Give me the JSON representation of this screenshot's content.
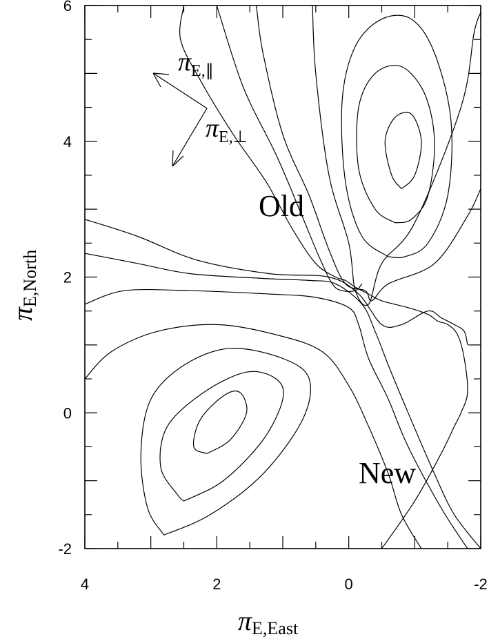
{
  "chart_data": {
    "type": "contour",
    "x_axis": {
      "label_symbol": "π",
      "label_subscript": "E,East",
      "range": [
        4,
        -2
      ],
      "reversed": true,
      "ticks": [
        4,
        2,
        0,
        -2
      ],
      "tick_labels": [
        "4",
        "2",
        "0",
        "-2"
      ]
    },
    "y_axis": {
      "label_symbol": "π",
      "label_subscript": "E,North",
      "range": [
        -2,
        6
      ],
      "ticks": [
        -2,
        0,
        2,
        4,
        6
      ],
      "tick_labels": [
        "-2",
        "0",
        "2",
        "4",
        "6"
      ]
    },
    "annotations": {
      "old": "Old",
      "new": "New",
      "arrow_parallel": {
        "symbol": "π",
        "subscript": "E,∥"
      },
      "arrow_perp": {
        "symbol": "π",
        "subscript": "E,⊥"
      }
    },
    "grid": false,
    "contours": [
      {
        "name": "old-inner",
        "points": [
          [
            -0.8,
            3.3
          ],
          [
            -0.65,
            3.5
          ],
          [
            -0.55,
            4.0
          ],
          [
            -0.7,
            4.35
          ],
          [
            -0.95,
            4.4
          ],
          [
            -1.1,
            4.0
          ],
          [
            -1.0,
            3.5
          ],
          [
            -0.8,
            3.3
          ]
        ]
      },
      {
        "name": "old-2",
        "points": [
          [
            -0.7,
            2.8
          ],
          [
            -0.4,
            3.0
          ],
          [
            -0.15,
            3.6
          ],
          [
            -0.15,
            4.5
          ],
          [
            -0.4,
            5.0
          ],
          [
            -0.8,
            5.1
          ],
          [
            -1.15,
            4.7
          ],
          [
            -1.3,
            4.0
          ],
          [
            -1.2,
            3.2
          ],
          [
            -0.95,
            2.85
          ],
          [
            -0.7,
            2.8
          ]
        ]
      },
      {
        "name": "old-3",
        "points": [
          [
            -0.6,
            2.3
          ],
          [
            -0.2,
            2.6
          ],
          [
            0.05,
            3.4
          ],
          [
            0.1,
            4.6
          ],
          [
            -0.1,
            5.4
          ],
          [
            -0.5,
            5.8
          ],
          [
            -0.95,
            5.8
          ],
          [
            -1.3,
            5.3
          ],
          [
            -1.55,
            4.3
          ],
          [
            -1.5,
            3.2
          ],
          [
            -1.2,
            2.5
          ],
          [
            -0.85,
            2.3
          ],
          [
            -0.6,
            2.3
          ]
        ]
      },
      {
        "name": "old-4",
        "points": [
          [
            0.55,
            6.0
          ],
          [
            0.5,
            5.0
          ],
          [
            0.3,
            3.5
          ],
          [
            0.0,
            2.5
          ],
          [
            -0.1,
            1.8
          ],
          [
            -0.3,
            1.6
          ],
          [
            -0.5,
            2.2
          ],
          [
            -1.0,
            2.8
          ],
          [
            -1.7,
            4.5
          ],
          [
            -1.9,
            5.6
          ],
          [
            -2.0,
            5.9
          ]
        ]
      },
      {
        "name": "old-5",
        "points": [
          [
            1.4,
            6.0
          ],
          [
            1.3,
            5.3
          ],
          [
            1.0,
            4.1
          ],
          [
            0.6,
            3.2
          ],
          [
            0.3,
            2.4
          ],
          [
            0.05,
            1.9
          ],
          [
            -0.25,
            1.8
          ],
          [
            -0.35,
            1.65
          ],
          [
            -0.6,
            1.9
          ],
          [
            -1.3,
            2.2
          ],
          [
            -1.8,
            2.9
          ],
          [
            -2.0,
            3.3
          ]
        ]
      },
      {
        "name": "mid-1",
        "points": [
          [
            2.0,
            6.0
          ],
          [
            1.6,
            4.8
          ],
          [
            1.1,
            3.8
          ],
          [
            0.75,
            3.0
          ],
          [
            0.45,
            2.3
          ],
          [
            0.25,
            1.9
          ],
          [
            0.1,
            1.8
          ],
          [
            -0.1,
            1.8
          ],
          [
            -0.2,
            1.9
          ]
        ]
      },
      {
        "name": "mid-2",
        "points": [
          [
            2.5,
            6.0
          ],
          [
            2.55,
            5.5
          ],
          [
            2.25,
            4.9
          ],
          [
            1.75,
            4.1
          ],
          [
            1.25,
            3.4
          ],
          [
            0.85,
            2.7
          ],
          [
            0.5,
            2.2
          ],
          [
            0.2,
            2.0
          ],
          [
            0.05,
            1.95
          ],
          [
            -0.1,
            1.85
          ],
          [
            -0.3,
            1.75
          ],
          [
            -0.5,
            1.65
          ],
          [
            -0.9,
            1.55
          ],
          [
            -1.2,
            1.45
          ],
          [
            -1.35,
            1.35
          ],
          [
            -1.5,
            1.3
          ],
          [
            -1.65,
            1.15
          ],
          [
            -1.75,
            0.8
          ],
          [
            -1.8,
            0.3
          ],
          [
            -1.7,
            0.0
          ],
          [
            -1.6,
            -0.2
          ],
          [
            -1.4,
            -0.6
          ],
          [
            -1.0,
            -1.3
          ],
          [
            -0.5,
            -2.0
          ]
        ]
      },
      {
        "name": "new-inner",
        "points": [
          [
            2.15,
            -0.6
          ],
          [
            1.8,
            -0.4
          ],
          [
            1.55,
            0.0
          ],
          [
            1.65,
            0.3
          ],
          [
            1.9,
            0.25
          ],
          [
            2.25,
            -0.1
          ],
          [
            2.35,
            -0.5
          ],
          [
            2.15,
            -0.6
          ]
        ]
      },
      {
        "name": "new-2",
        "points": [
          [
            2.5,
            -1.3
          ],
          [
            1.9,
            -1.0
          ],
          [
            1.3,
            -0.4
          ],
          [
            1.0,
            0.2
          ],
          [
            1.1,
            0.5
          ],
          [
            1.55,
            0.6
          ],
          [
            2.2,
            0.3
          ],
          [
            2.75,
            -0.2
          ],
          [
            2.85,
            -0.8
          ],
          [
            2.6,
            -1.2
          ],
          [
            2.5,
            -1.3
          ]
        ]
      },
      {
        "name": "new-3",
        "points": [
          [
            2.8,
            -1.8
          ],
          [
            2.1,
            -1.5
          ],
          [
            1.3,
            -0.9
          ],
          [
            0.7,
            -0.1
          ],
          [
            0.6,
            0.5
          ],
          [
            1.0,
            0.8
          ],
          [
            1.8,
            0.95
          ],
          [
            2.5,
            0.7
          ],
          [
            3.0,
            0.2
          ],
          [
            3.15,
            -0.6
          ],
          [
            3.05,
            -1.4
          ],
          [
            2.8,
            -1.8
          ]
        ]
      },
      {
        "name": "new-4",
        "points": [
          [
            4.0,
            0.5
          ],
          [
            3.6,
            0.9
          ],
          [
            2.9,
            1.2
          ],
          [
            2.0,
            1.3
          ],
          [
            1.1,
            1.15
          ],
          [
            0.4,
            0.9
          ],
          [
            0.0,
            0.4
          ],
          [
            -0.3,
            -0.2
          ],
          [
            -0.6,
            -0.9
          ],
          [
            -0.8,
            -1.5
          ],
          [
            -1.1,
            -2.0
          ]
        ]
      },
      {
        "name": "new-5",
        "points": [
          [
            4.0,
            1.6
          ],
          [
            3.4,
            1.8
          ],
          [
            2.4,
            1.8
          ],
          [
            1.2,
            1.75
          ],
          [
            0.5,
            1.7
          ],
          [
            0.0,
            1.55
          ],
          [
            -0.15,
            1.3
          ],
          [
            -0.3,
            0.8
          ],
          [
            -0.6,
            0.2
          ],
          [
            -0.9,
            -0.5
          ],
          [
            -1.4,
            -1.4
          ],
          [
            -1.8,
            -2.0
          ]
        ]
      },
      {
        "name": "new-6",
        "points": [
          [
            4.0,
            2.35
          ],
          [
            3.2,
            2.2
          ],
          [
            2.4,
            2.05
          ],
          [
            1.3,
            1.98
          ],
          [
            0.6,
            1.95
          ],
          [
            0.2,
            1.9
          ],
          [
            -0.2,
            1.6
          ],
          [
            -0.4,
            1.2
          ],
          [
            -0.6,
            0.7
          ],
          [
            -0.9,
            0.0
          ],
          [
            -1.3,
            -0.9
          ],
          [
            -1.6,
            -1.5
          ],
          [
            -2.0,
            -2.0
          ]
        ]
      },
      {
        "name": "new-7",
        "points": [
          [
            4.0,
            2.85
          ],
          [
            3.2,
            2.6
          ],
          [
            2.3,
            2.25
          ],
          [
            1.2,
            2.05
          ],
          [
            0.3,
            2.0
          ],
          [
            -0.15,
            1.75
          ],
          [
            -0.5,
            1.3
          ],
          [
            -0.8,
            1.3
          ],
          [
            -1.2,
            1.5
          ],
          [
            -1.4,
            1.4
          ],
          [
            -1.6,
            1.3
          ],
          [
            -1.75,
            1.2
          ],
          [
            -1.8,
            1.0
          ]
        ]
      }
    ]
  }
}
